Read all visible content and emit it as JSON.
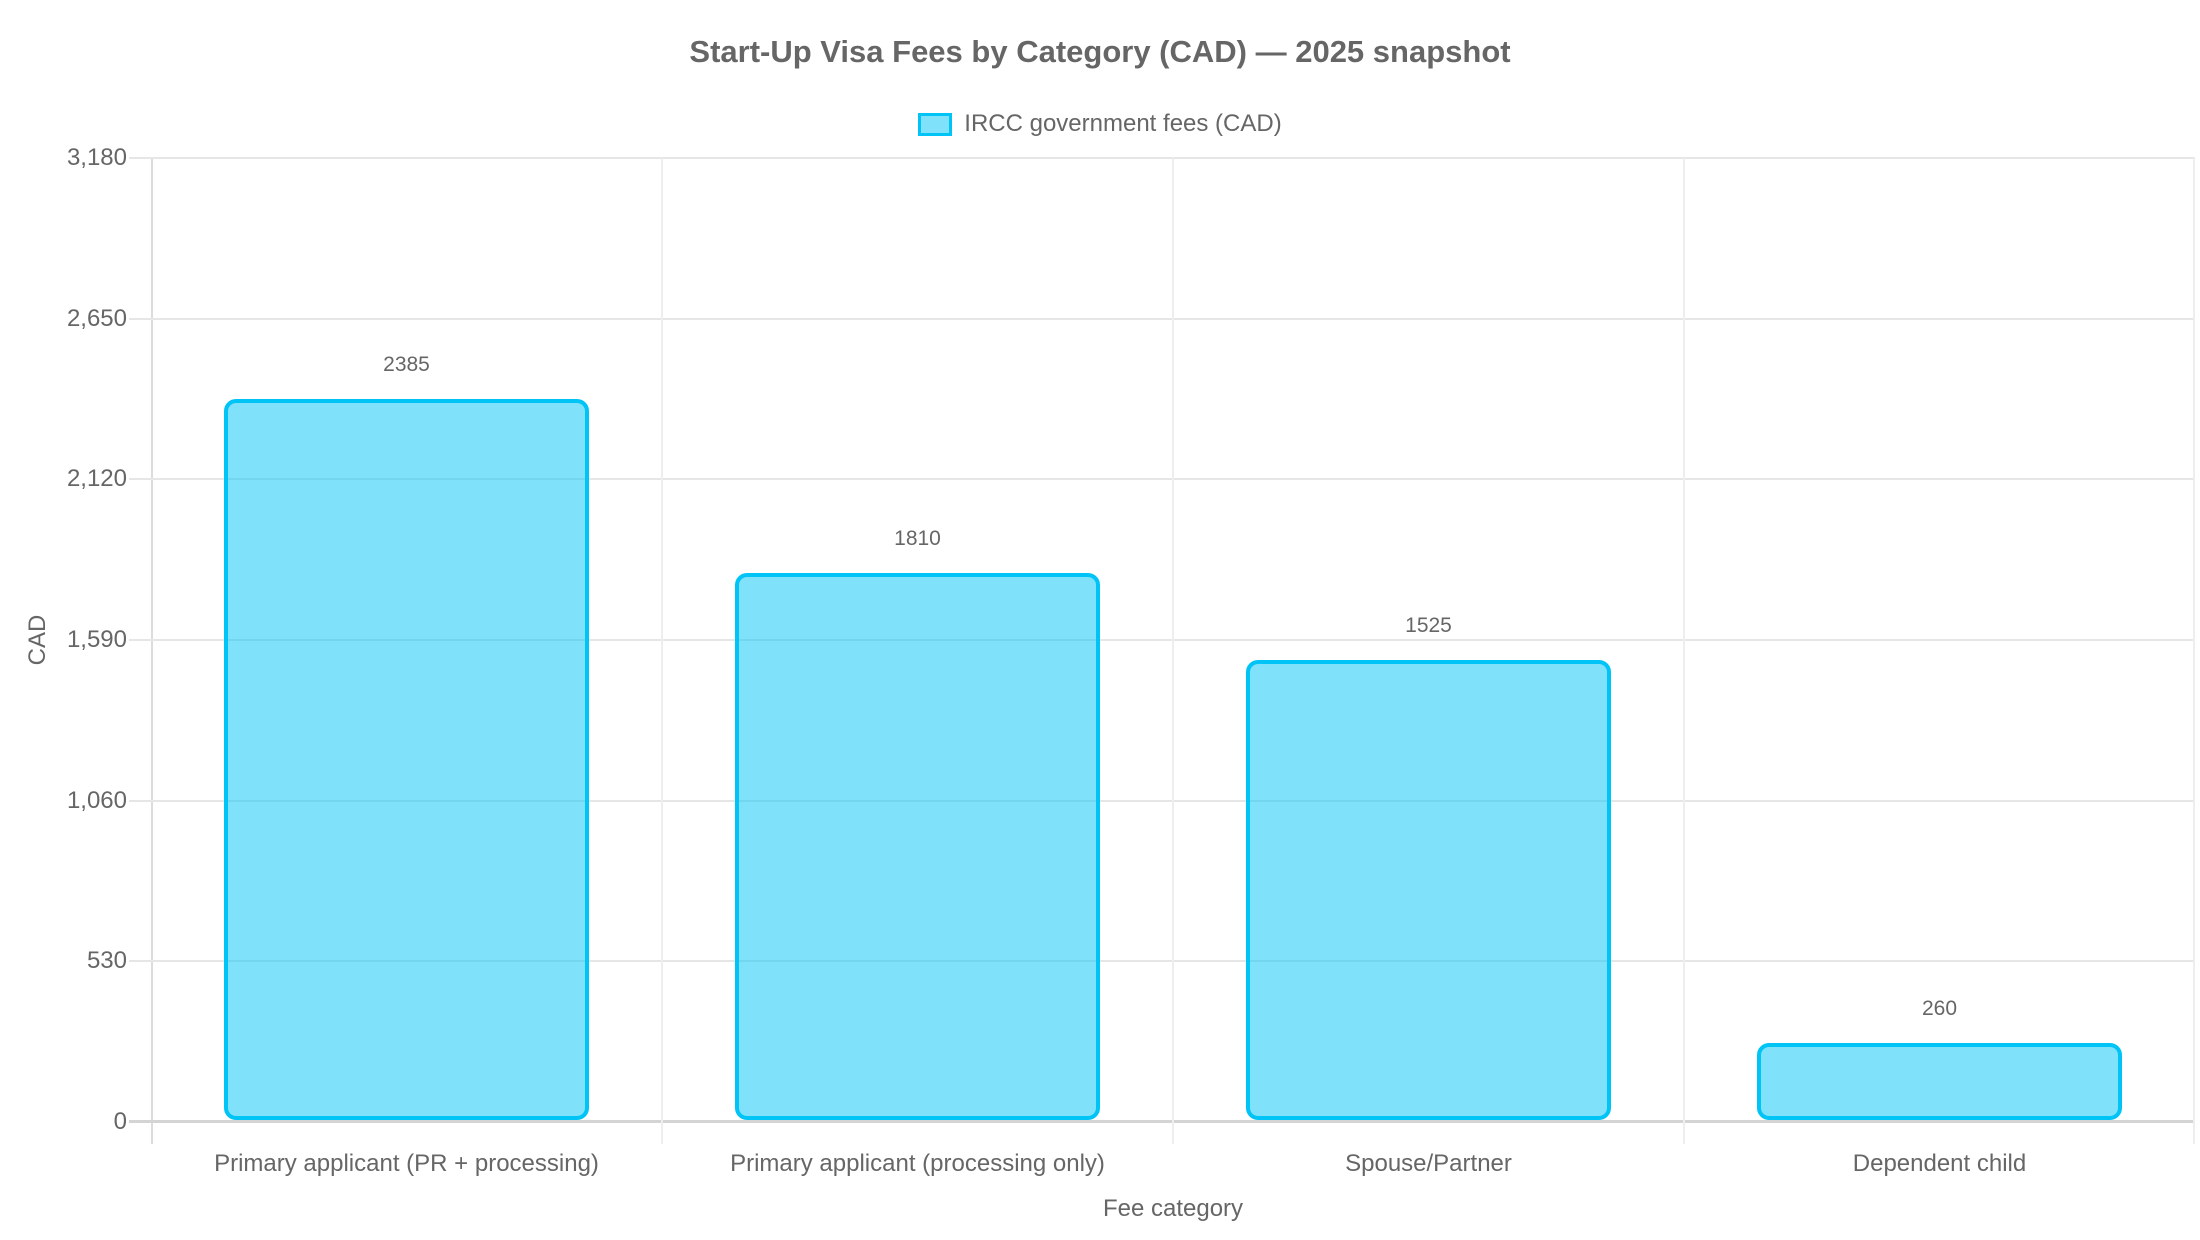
{
  "chart_data": {
    "type": "bar",
    "title": "Start-Up Visa Fees by Category (CAD) — 2025 snapshot",
    "categories": [
      "Primary applicant (PR + processing)",
      "Primary applicant (processing only)",
      "Spouse/Partner",
      "Dependent child"
    ],
    "series": [
      {
        "name": "IRCC government fees (CAD)",
        "values": [
          2385,
          1810,
          1525,
          260
        ],
        "color": "#00c4f5"
      }
    ],
    "value_labels": [
      "2385",
      "1810",
      "1525",
      "260"
    ],
    "xlabel": "Fee category",
    "ylabel": "CAD",
    "ylim": [
      0,
      3180
    ],
    "yticks": [
      "0",
      "530",
      "1,060",
      "1,590",
      "2,120",
      "2,650",
      "3,180"
    ],
    "grid": true,
    "legend_position": "top"
  },
  "title": "Start-Up Visa Fees by Category (CAD) — 2025 snapshot",
  "legend": {
    "label": "IRCC government fees (CAD)"
  },
  "axes": {
    "xlabel": "Fee category",
    "ylabel": "CAD",
    "yticks": [
      "0",
      "530",
      "1,060",
      "1,590",
      "2,120",
      "2,650",
      "3,180"
    ]
  },
  "bars": [
    {
      "category": "Primary applicant (PR + processing)",
      "value": 2385,
      "label": "2385"
    },
    {
      "category": "Primary applicant (processing only)",
      "value": 1810,
      "label": "1810"
    },
    {
      "category": "Spouse/Partner",
      "value": 1525,
      "label": "1525"
    },
    {
      "category": "Dependent child",
      "value": 260,
      "label": "260"
    }
  ]
}
